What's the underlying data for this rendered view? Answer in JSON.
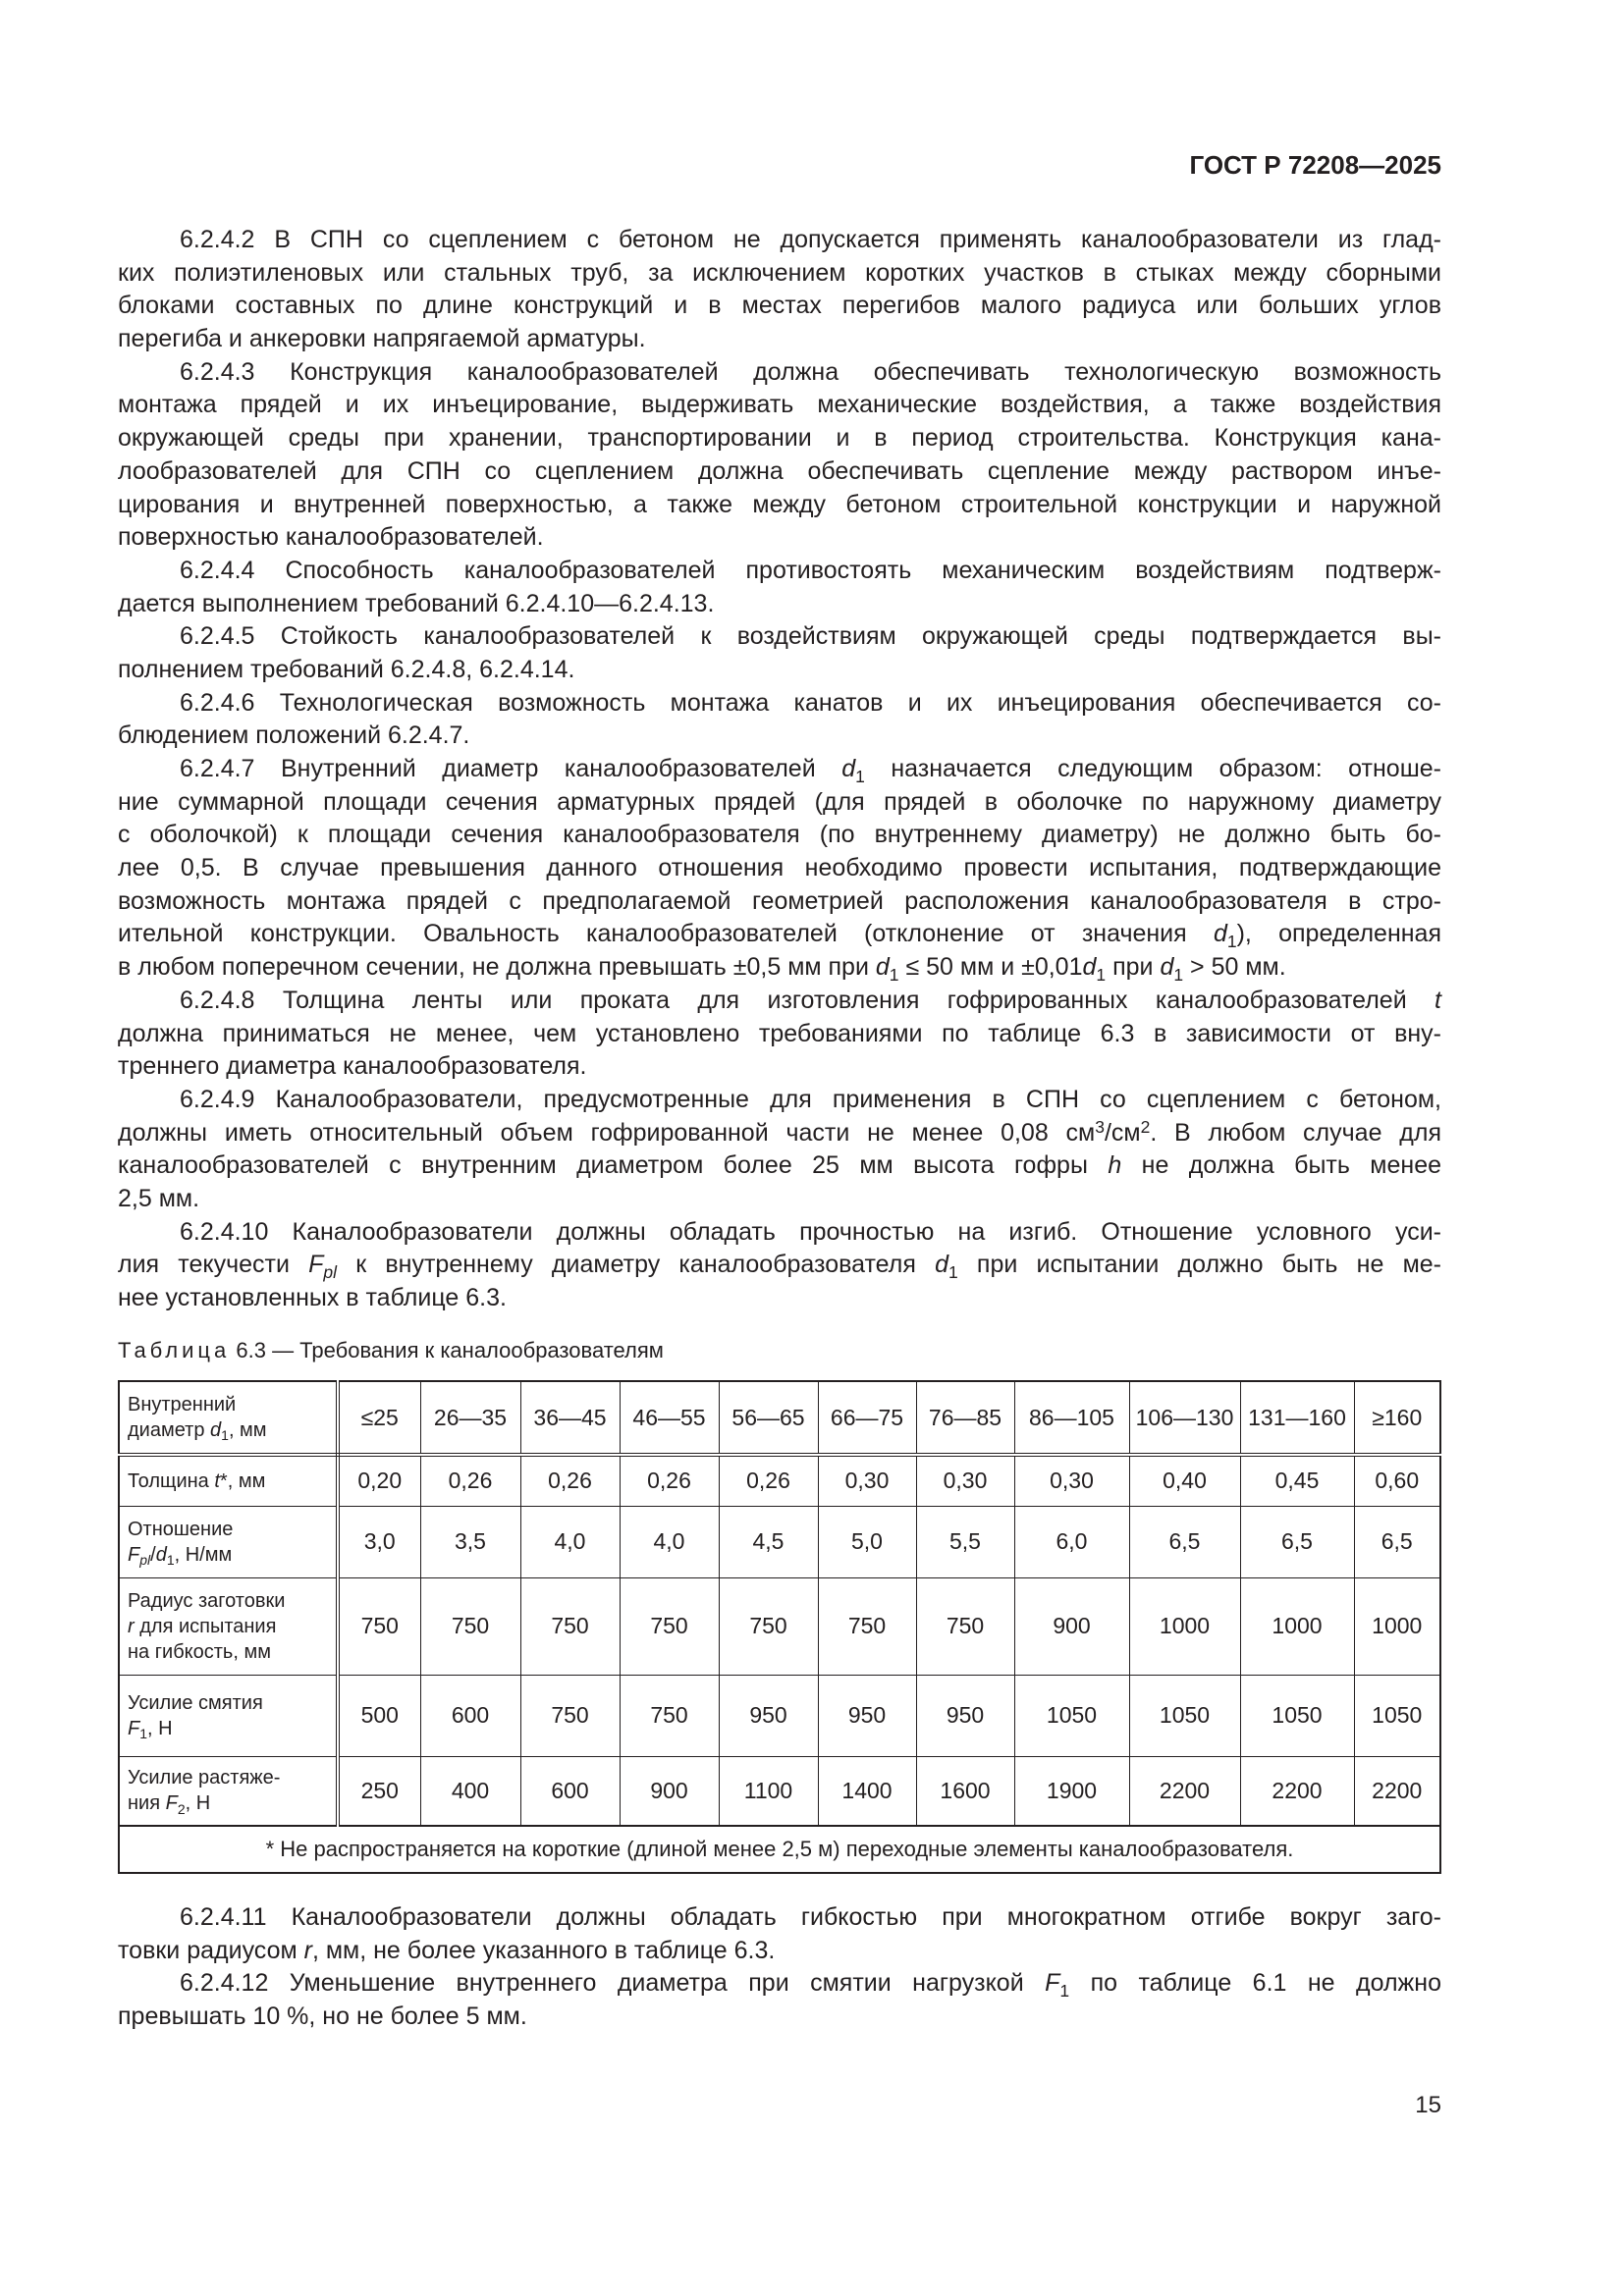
{
  "header": {
    "doc_id": "ГОСТ Р 72208—2025"
  },
  "paragraphs_top": [
    [
      "6.2.4.2 В СПН со сцеплением с бетоном не допускается применять каналообразователи из глад-",
      "ких полиэтиленовых или стальных труб, за исключением коротких участков в стыках между сборными",
      "блоками составных по длине конструкций и в местах перегибов малого радиуса или больших углов",
      "перегиба и анкеровки напрягаемой арматуры."
    ],
    [
      "6.2.4.3 Конструкция каналообразователей должна обеспечивать технологическую возможность",
      "монтажа прядей и их инъецирование, выдерживать механические воздействия, а также воздействия",
      "окружающей среды при хранении, транспортировании и в период строительства. Конструкция кана-",
      "лообразователей для СПН со сцеплением должна обеспечивать сцепление между раствором инъе-",
      "цирования и внутренней поверхностью, а также между бетоном строительной конструкции и наружной",
      "поверхностью каналообразователей."
    ],
    [
      "6.2.4.4 Способность каналообразователей противостоять механическим воздействиям подтверж-",
      "дается выполнением требований 6.2.4.10—6.2.4.13."
    ],
    [
      "6.2.4.5 Стойкость каналообразователей к воздействиям окружающей среды подтверждается вы-",
      "полнением требований 6.2.4.8, 6.2.4.14."
    ],
    [
      "6.2.4.6 Технологическая возможность монтажа канатов и их инъецирования обеспечивается со-",
      "блюдением положений 6.2.4.7."
    ],
    [
      [
        "6.2.4.7 Внутренний диаметр каналообразователей ",
        {
          "i": "d",
          "sub": "1"
        },
        " назначается следующим образом: отноше-"
      ],
      "ние суммарной площади сечения арматурных прядей (для прядей в оболочке по наружному диаметру",
      "с оболочкой) к площади сечения каналообразователя (по внутреннему диаметру) не должно быть бо-",
      "лее 0,5. В случае превышения данного отношения необходимо провести испытания, подтверждающие",
      "возможность монтажа прядей с предполагаемой геометрией расположения каналообразователя в стро-",
      [
        "ительной конструкции. Овальность каналообразователей (отклонение от значения ",
        {
          "i": "d",
          "sub": "1"
        },
        "), определенная"
      ],
      [
        "в любом поперечном сечении, не должна превышать ±0,5 мм при ",
        {
          "i": "d",
          "sub": "1"
        },
        " ≤ 50 мм и ±0,01",
        {
          "i": "d",
          "sub": "1"
        },
        " при ",
        {
          "i": "d",
          "sub": "1"
        },
        " > 50 мм."
      ]
    ],
    [
      [
        "6.2.4.8 Толщина ленты или проката для изготовления гофрированных каналообразователей ",
        {
          "i": "t"
        }
      ],
      "должна приниматься не менее, чем установлено требованиями по таблице 6.3 в зависимости от вну-",
      "треннего диаметра каналообразователя."
    ],
    [
      "6.2.4.9 Каналообразователи, предусмотренные для применения в СПН со сцеплением с бетоном,",
      [
        "должны иметь относительный объем гофрированной части не менее 0,08 см",
        {
          "sup": "3"
        },
        "/см",
        {
          "sup": "2"
        },
        ". В любом случае для"
      ],
      [
        "каналообразователей с внутренним диаметром более 25 мм высота гофры ",
        {
          "i": "h"
        },
        " не должна быть менее"
      ],
      "2,5 мм."
    ],
    [
      "6.2.4.10 Каналообразователи должны обладать прочностью на изгиб. Отношение условного уси-",
      [
        "лия текучести ",
        {
          "i": "F",
          "isub": "pl"
        },
        " к внутреннему диаметру каналообразователя ",
        {
          "i": "d",
          "sub": "1"
        },
        " при испытании должно быть не ме-"
      ],
      "нее установленных в таблице 6.3."
    ]
  ],
  "table": {
    "caption_label": "Таблица",
    "caption_rest": " 6.3 — Требования к каналообразователям",
    "header_label": [
      [
        "Внутренний"
      ],
      [
        "диаметр ",
        {
          "i": "d",
          "sub": "1"
        },
        ", мм"
      ]
    ],
    "columns": [
      "≤25",
      "26—35",
      "36—45",
      "46—55",
      "56—65",
      "66—75",
      "76—85",
      "86—105",
      "106—130",
      "131—160",
      "≥160"
    ],
    "rows": [
      {
        "label": [
          [
            "Толщина ",
            {
              "i": "t"
            },
            "*, мм"
          ]
        ],
        "values": [
          "0,20",
          "0,26",
          "0,26",
          "0,26",
          "0,26",
          "0,30",
          "0,30",
          "0,30",
          "0,40",
          "0,45",
          "0,60"
        ]
      },
      {
        "label": [
          [
            "Отношение"
          ],
          [
            {
              "i": "F",
              "isub": "pl"
            },
            "/",
            {
              "i": "d",
              "sub": "1"
            },
            ", Н/мм"
          ]
        ],
        "values": [
          "3,0",
          "3,5",
          "4,0",
          "4,0",
          "4,5",
          "5,0",
          "5,5",
          "6,0",
          "6,5",
          "6,5",
          "6,5"
        ]
      },
      {
        "label": [
          [
            "Радиус заготовки"
          ],
          [
            {
              "i": "r"
            },
            " для испытания"
          ],
          [
            "на гибкость, мм"
          ]
        ],
        "values": [
          "750",
          "750",
          "750",
          "750",
          "750",
          "750",
          "750",
          "900",
          "1000",
          "1000",
          "1000"
        ]
      },
      {
        "label": [
          [
            "Усилие смятия"
          ],
          [
            {
              "i": "F",
              "sub": "1"
            },
            ", Н"
          ]
        ],
        "values": [
          "500",
          "600",
          "750",
          "750",
          "950",
          "950",
          "950",
          "1050",
          "1050",
          "1050",
          "1050"
        ]
      },
      {
        "label": [
          [
            "Усилие растяже-"
          ],
          [
            "ния ",
            {
              "i": "F",
              "sub": "2"
            },
            ", Н"
          ]
        ],
        "values": [
          "250",
          "400",
          "600",
          "900",
          "1100",
          "1400",
          "1600",
          "1900",
          "2200",
          "2200",
          "2200"
        ]
      }
    ],
    "footnote": "* Не распространяется на короткие (длиной менее 2,5 м) переходные элементы каналообразователя."
  },
  "paragraphs_bottom": [
    [
      "6.2.4.11 Каналообразователи должны обладать гибкостью при многократном отгибе вокруг заго-",
      [
        "товки радиусом ",
        {
          "i": "r"
        },
        ", мм, не более указанного в таблице 6.3."
      ]
    ],
    [
      [
        "6.2.4.12 Уменьшение внутреннего диаметра при смятии нагрузкой ",
        {
          "i": "F",
          "sub": "1"
        },
        " по таблице 6.1 не должно"
      ],
      "превышать 10 %, но не более 5 мм."
    ]
  ],
  "page_number": "15"
}
